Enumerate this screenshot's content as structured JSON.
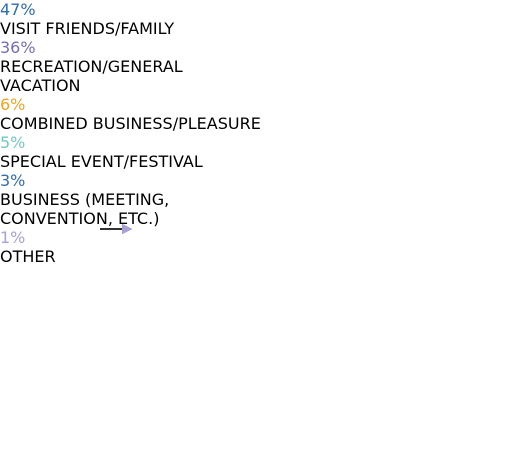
{
  "items": [
    {
      "percent": "47%",
      "lines": [
        "VISIT FRIENDS/FAMILY"
      ],
      "color": "#2c6db3"
    },
    {
      "percent": "36%",
      "lines": [
        "RECREATION/GENERAL",
        "VACATION"
      ],
      "color": "#7a6cb3"
    },
    {
      "percent": "6%",
      "lines": [
        "COMBINED BUSINESS/PLEASURE"
      ],
      "color": "#f2a31d"
    },
    {
      "percent": "5%",
      "lines": [
        "SPECIAL EVENT/FESTIVAL"
      ],
      "color": "#6fcbc2"
    },
    {
      "percent": "3%",
      "lines": [
        "BUSINESS (MEETING,",
        "CONVENTION, ETC.)"
      ],
      "color": "#2c6db3"
    },
    {
      "percent": "1%",
      "lines": [
        "OTHER"
      ],
      "color": "#a9a1d3"
    }
  ]
}
